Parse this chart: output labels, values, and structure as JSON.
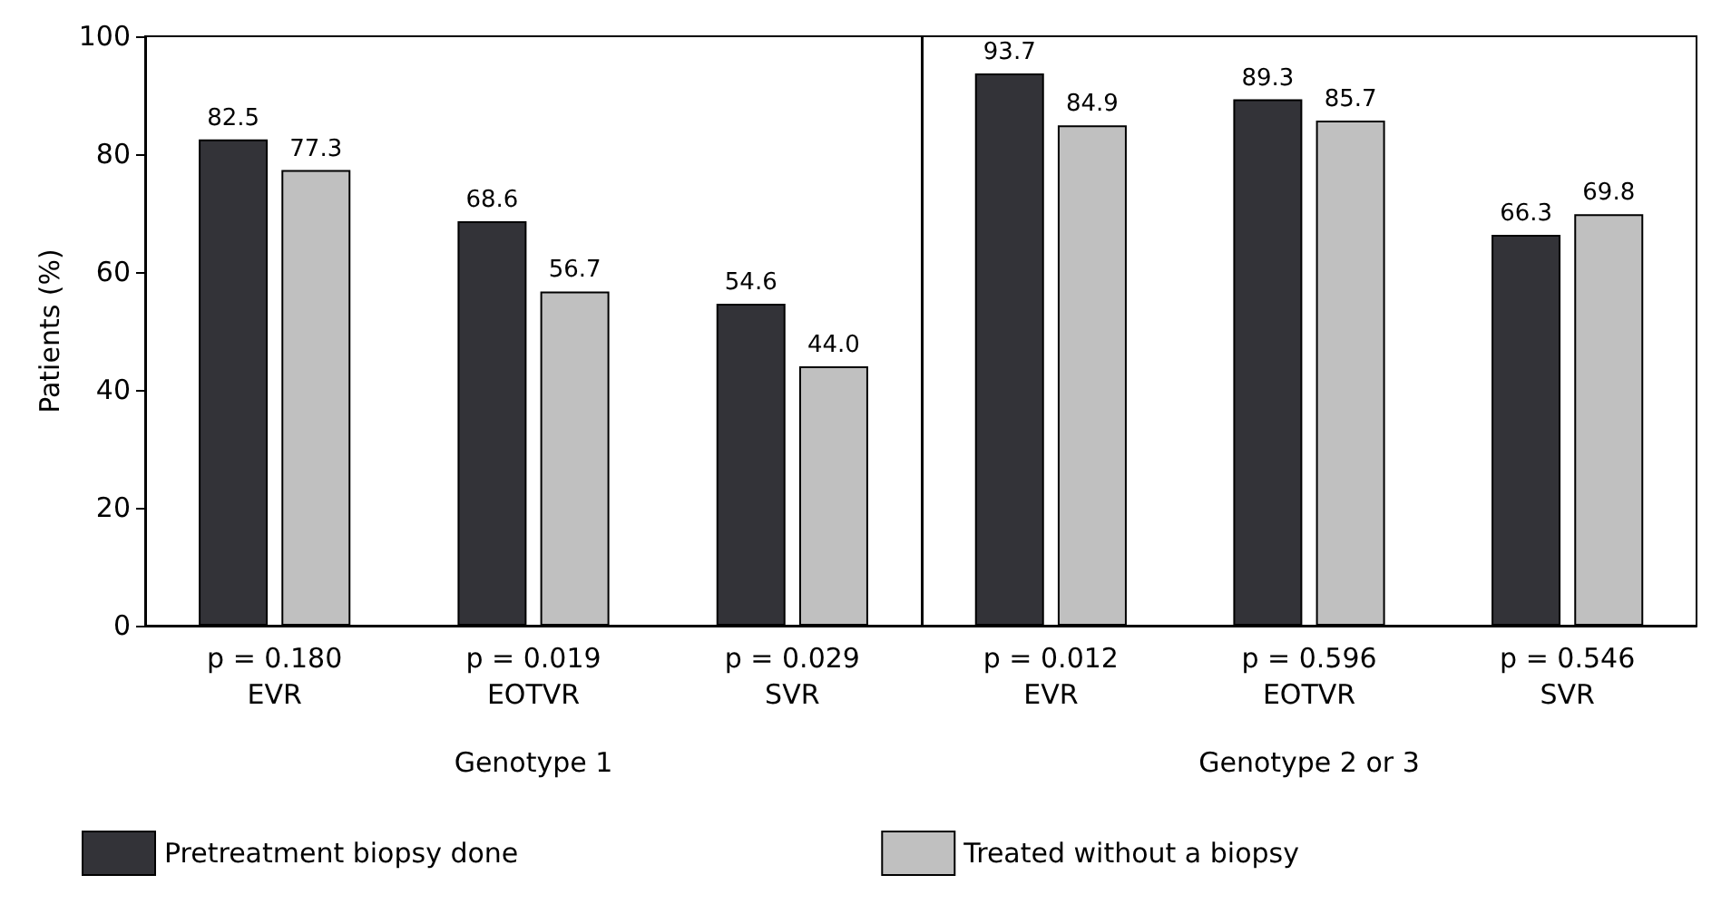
{
  "chart_data": [
    {
      "type": "bar",
      "ylabel": "Patients (%)",
      "xlabel": "Genotype 1",
      "categories": [
        "p = 0.180\nEVR",
        "p = 0.019\nEOTVR",
        "p = 0.029\nSVR"
      ],
      "series": [
        {
          "name": "Pretreatment biopsy done",
          "color": "#333338",
          "values": [
            82.5,
            68.6,
            54.6
          ],
          "value_labels": [
            "82.5",
            "68.6",
            "54.6"
          ]
        },
        {
          "name": "Treated without a biopsy",
          "color": "#c0c0c0",
          "values": [
            77.3,
            56.7,
            44
          ],
          "value_labels": [
            "77.3",
            "56.7",
            "44.0"
          ]
        }
      ],
      "ylim": [
        0,
        100
      ],
      "yticks": [
        0,
        20,
        40,
        60,
        80,
        100
      ],
      "legend": "bottom"
    },
    {
      "type": "bar",
      "xlabel": "Genotype 2 or 3",
      "categories": [
        "p = 0.012\nEVR",
        "p = 0.596\nEOTVR",
        "p = 0.546\nSVR"
      ],
      "series": [
        {
          "color": "#333338",
          "values": [
            93.7,
            89.3,
            66.3
          ],
          "value_labels": [
            "93.7",
            "89.3",
            "66.3"
          ]
        },
        {
          "color": "#c0c0c0",
          "values": [
            84.9,
            85.7,
            69.8
          ],
          "value_labels": [
            "84.9",
            "85.7",
            "69.8"
          ]
        }
      ],
      "ylim": [
        0,
        100
      ],
      "yticks": [
        0,
        20,
        40,
        60,
        80,
        100
      ],
      "tick_labels": "x"
    }
  ]
}
